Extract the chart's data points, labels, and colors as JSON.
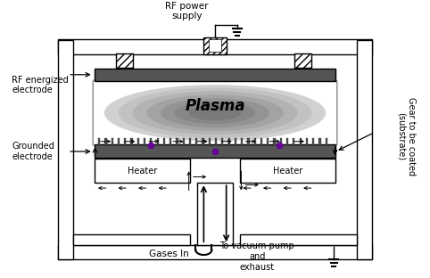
{
  "figsize": [
    4.82,
    3.12
  ],
  "dpi": 100,
  "bg_color": "#ffffff",
  "plasma_text": "Plasma",
  "labels": {
    "rf_power": "RF power\nsupply",
    "rf_electrode": "RF energized\nelectrode",
    "grounded": "Grounded\nelectrode",
    "gases_in": "Gases In",
    "vacuum": "To vacuum pump\nand\nexhaust",
    "gear": "Gear to be coated\n(substrate)"
  },
  "gray_dark": "#555555",
  "gray_med": "#888888",
  "gray_light": "#bbbbbb",
  "gray_plasma_outer": "#d0d0d0",
  "purple_dot": "#660099"
}
